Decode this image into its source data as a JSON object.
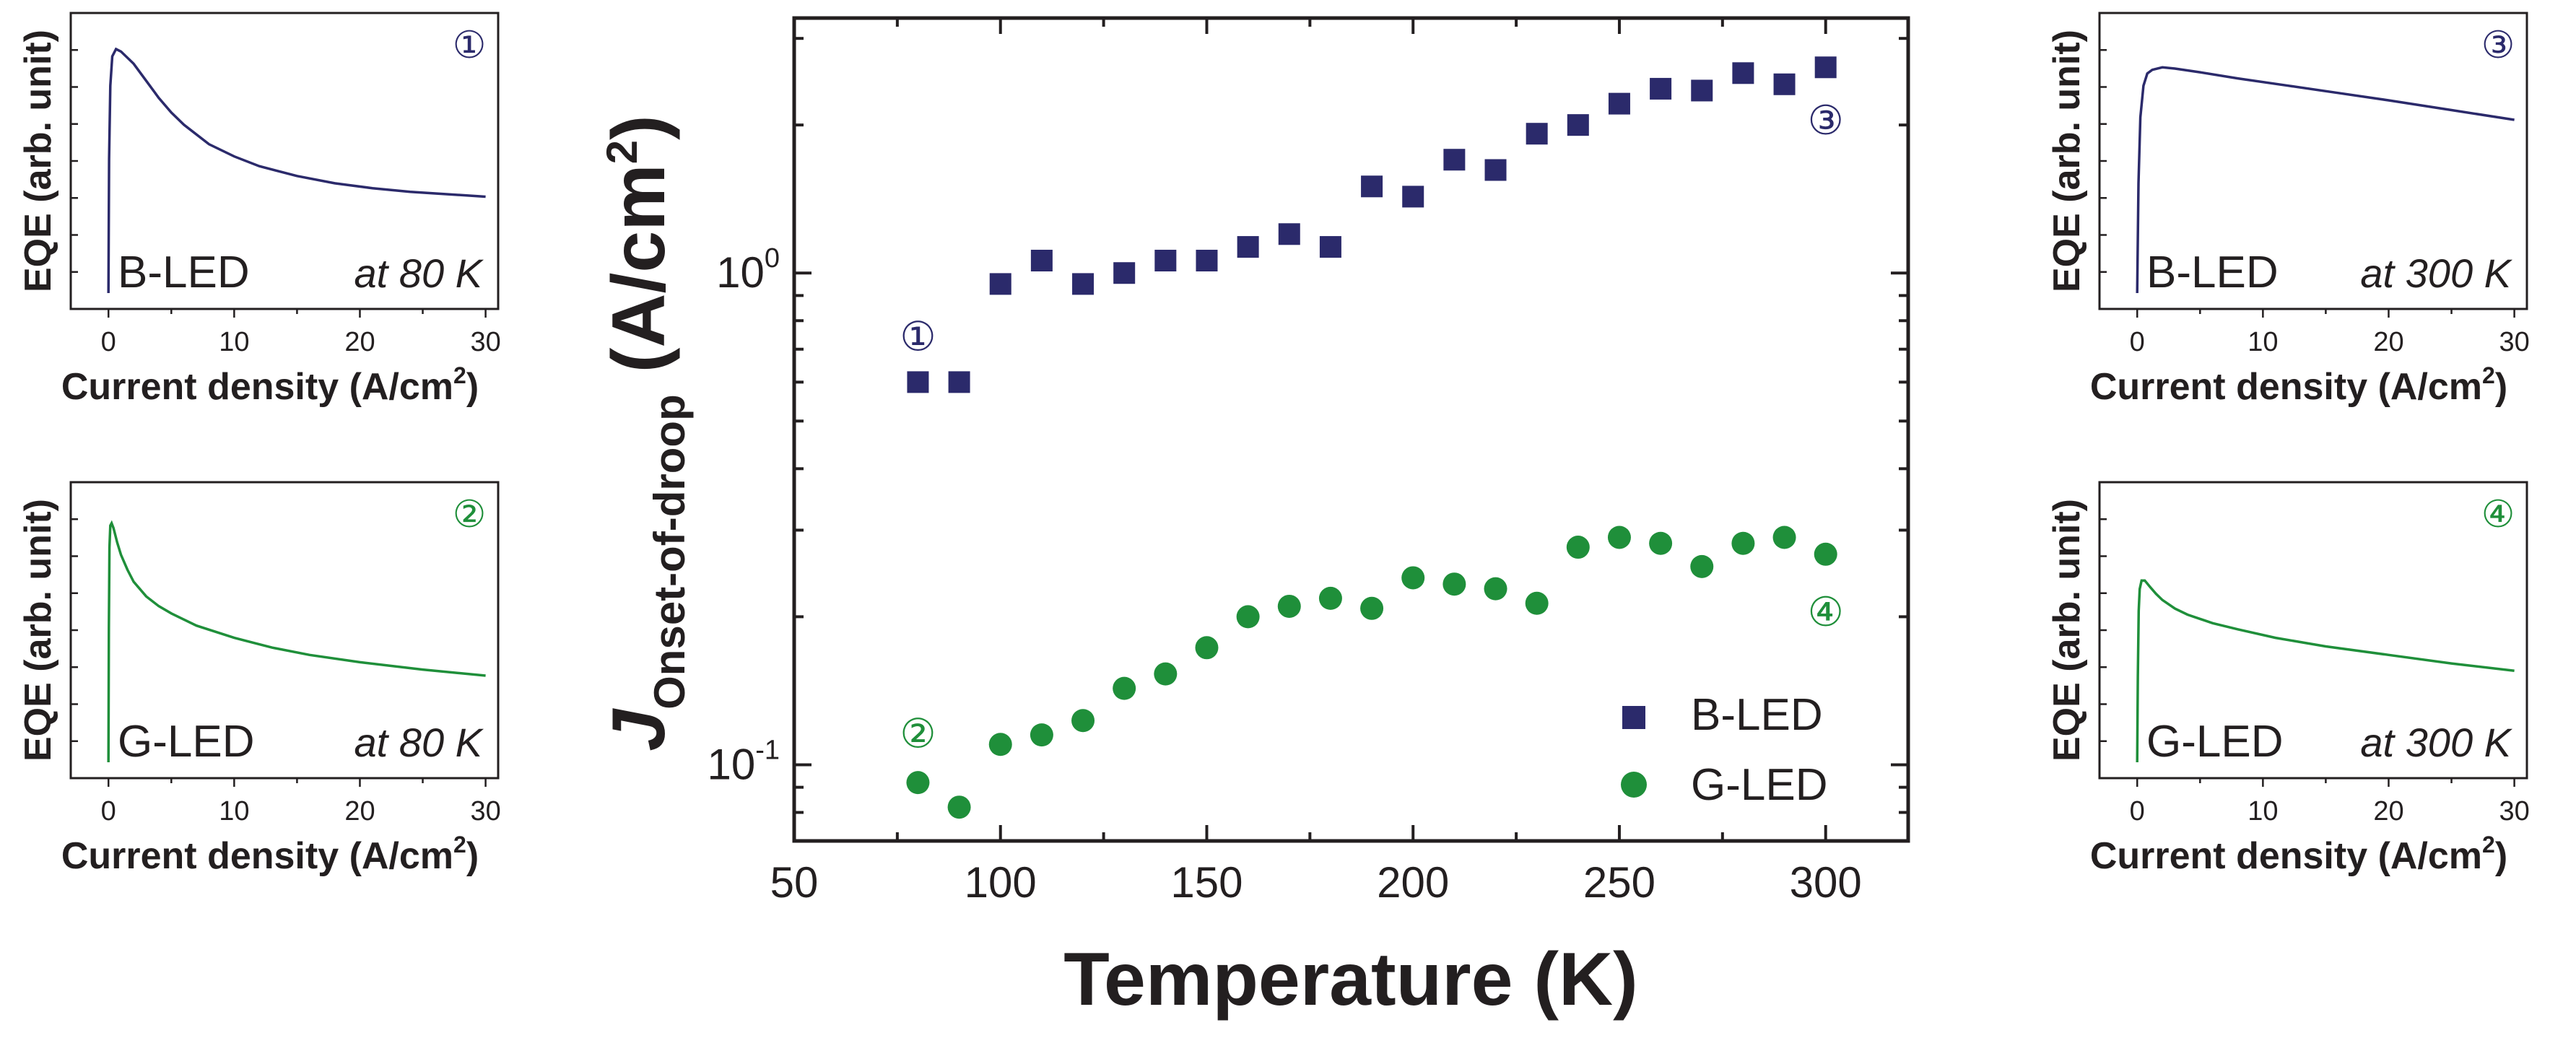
{
  "colors": {
    "b_led": "#2b2a6b",
    "g_led": "#1f8f3a",
    "axis": "#231f20"
  },
  "chart_data": [
    {
      "type": "scatter",
      "id": "main",
      "title": "",
      "xlabel": "Temperature (K)",
      "ylabel_main": "J",
      "ylabel_sub": "Onset-of-droop",
      "ylabel_unit": "(A/cm",
      "ylabel_unit_sup": "2",
      "ylabel_unit_close": ")",
      "xlim": [
        50,
        320
      ],
      "ylim": [
        0.07,
        3.3
      ],
      "yscale": "log",
      "xticks": [
        50,
        100,
        150,
        200,
        250,
        300
      ],
      "xtick_labels": [
        "50",
        "100",
        "150",
        "200",
        "250",
        "300"
      ],
      "yticks": [
        {
          "value": 1.0,
          "base": "10",
          "exp": "0"
        },
        {
          "value": 0.1,
          "base": "10",
          "exp": "-1"
        }
      ],
      "legend_position": "bottom-right",
      "series": [
        {
          "name": "B-LED",
          "marker": "square",
          "x": [
            80,
            90,
            100,
            110,
            120,
            130,
            140,
            150,
            160,
            170,
            180,
            190,
            200,
            210,
            220,
            230,
            240,
            250,
            260,
            270,
            280,
            290,
            300
          ],
          "y": [
            0.6,
            0.6,
            0.95,
            1.06,
            0.95,
            1.0,
            1.06,
            1.06,
            1.13,
            1.2,
            1.13,
            1.5,
            1.43,
            1.7,
            1.62,
            1.92,
            2.0,
            2.21,
            2.37,
            2.35,
            2.55,
            2.42,
            2.62
          ]
        },
        {
          "name": "G-LED",
          "marker": "circle",
          "x": [
            80,
            90,
            100,
            110,
            120,
            130,
            140,
            150,
            160,
            170,
            180,
            190,
            200,
            210,
            220,
            230,
            240,
            250,
            260,
            270,
            280,
            290,
            300
          ],
          "y": [
            0.092,
            0.082,
            0.11,
            0.115,
            0.123,
            0.143,
            0.153,
            0.173,
            0.2,
            0.21,
            0.218,
            0.208,
            0.24,
            0.233,
            0.228,
            0.213,
            0.277,
            0.29,
            0.282,
            0.253,
            0.282,
            0.29,
            0.268
          ]
        }
      ],
      "annotations": [
        {
          "text": "①",
          "x": 80,
          "y": 0.745,
          "series": "B-LED"
        },
        {
          "text": "②",
          "x": 80,
          "y": 0.116,
          "series": "G-LED"
        },
        {
          "text": "③",
          "x": 300,
          "y": 2.05,
          "series": "B-LED"
        },
        {
          "text": "④",
          "x": 300,
          "y": 0.205,
          "series": "G-LED"
        }
      ]
    },
    {
      "type": "line",
      "id": "inset1",
      "series_name": "B-LED",
      "condition": "at 80 K",
      "marker_label": "①",
      "xlabel": "Current density (A/cm",
      "xlabel_sup": "2",
      "xlabel_close": ")",
      "ylabel": "EQE (arb. unit)",
      "xlim": [
        -3,
        31
      ],
      "ylim": [
        0,
        1
      ],
      "xticks": [
        0,
        10,
        20,
        30
      ],
      "xtick_labels": [
        "0",
        "10",
        "20",
        "30"
      ],
      "x": [
        0,
        0.05,
        0.15,
        0.3,
        0.6,
        1,
        2,
        3,
        4,
        5,
        6,
        8,
        10,
        12,
        15,
        18,
        21,
        24,
        27,
        30
      ],
      "y": [
        0,
        0.55,
        0.85,
        0.97,
        1.0,
        0.99,
        0.94,
        0.87,
        0.8,
        0.74,
        0.69,
        0.61,
        0.56,
        0.52,
        0.48,
        0.45,
        0.43,
        0.415,
        0.405,
        0.395
      ]
    },
    {
      "type": "line",
      "id": "inset2",
      "series_name": "G-LED",
      "condition": "at 80 K",
      "marker_label": "②",
      "xlabel": "Current density (A/cm",
      "xlabel_sup": "2",
      "xlabel_close": ")",
      "ylabel": "EQE (arb. unit)",
      "xlim": [
        -3,
        31
      ],
      "ylim": [
        0,
        1
      ],
      "xticks": [
        0,
        10,
        20,
        30
      ],
      "xtick_labels": [
        "0",
        "10",
        "20",
        "30"
      ],
      "x": [
        0,
        0.03,
        0.08,
        0.15,
        0.25,
        0.4,
        0.7,
        1,
        1.5,
        2,
        3,
        4,
        5,
        7,
        10,
        13,
        16,
        20,
        25,
        30
      ],
      "y": [
        0,
        0.55,
        0.88,
        0.97,
        0.98,
        0.96,
        0.9,
        0.85,
        0.79,
        0.74,
        0.68,
        0.64,
        0.61,
        0.56,
        0.51,
        0.47,
        0.44,
        0.41,
        0.38,
        0.355
      ]
    },
    {
      "type": "line",
      "id": "inset3",
      "series_name": "B-LED",
      "condition": "at 300 K",
      "marker_label": "③",
      "xlabel": "Current density (A/cm",
      "xlabel_sup": "2",
      "xlabel_close": ")",
      "ylabel": "EQE (arb. unit)",
      "xlim": [
        -3,
        31
      ],
      "ylim": [
        0,
        1
      ],
      "xticks": [
        0,
        10,
        20,
        30
      ],
      "xtick_labels": [
        "0",
        "10",
        "20",
        "30"
      ],
      "x": [
        0,
        0.1,
        0.25,
        0.5,
        0.8,
        1.2,
        2,
        3,
        5,
        8,
        12,
        16,
        20,
        25,
        30
      ],
      "y": [
        0,
        0.45,
        0.72,
        0.85,
        0.9,
        0.915,
        0.925,
        0.92,
        0.905,
        0.88,
        0.85,
        0.82,
        0.79,
        0.75,
        0.71
      ]
    },
    {
      "type": "line",
      "id": "inset4",
      "series_name": "G-LED",
      "condition": "at 300 K",
      "marker_label": "④",
      "xlabel": "Current density (A/cm",
      "xlabel_sup": "2",
      "xlabel_close": ")",
      "ylabel": "EQE (arb. unit)",
      "xlim": [
        -3,
        31
      ],
      "ylim": [
        0,
        1
      ],
      "xticks": [
        0,
        10,
        20,
        30
      ],
      "xtick_labels": [
        "0",
        "10",
        "20",
        "30"
      ],
      "x": [
        0,
        0.05,
        0.12,
        0.2,
        0.35,
        0.6,
        1,
        1.5,
        2,
        3,
        4,
        6,
        8,
        11,
        15,
        20,
        25,
        30
      ],
      "y": [
        0,
        0.35,
        0.62,
        0.71,
        0.745,
        0.745,
        0.72,
        0.69,
        0.665,
        0.63,
        0.605,
        0.57,
        0.545,
        0.51,
        0.475,
        0.44,
        0.405,
        0.375
      ]
    }
  ]
}
